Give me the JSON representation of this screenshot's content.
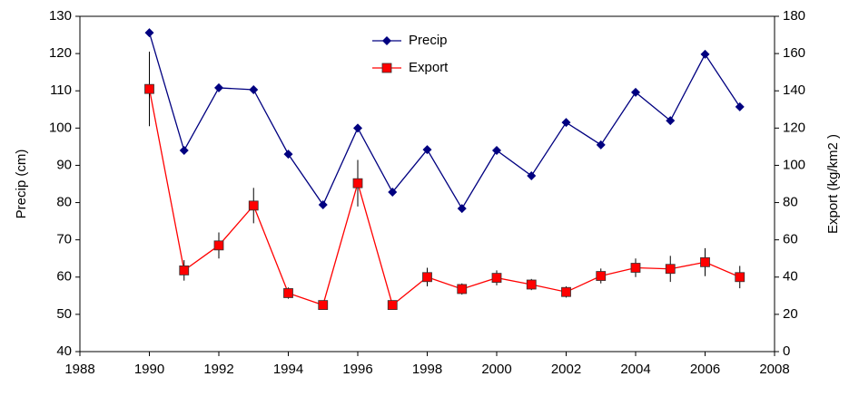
{
  "chart_data": {
    "type": "line",
    "x": [
      1990,
      1991,
      1992,
      1993,
      1994,
      1995,
      1996,
      1997,
      1998,
      1999,
      2000,
      2001,
      2002,
      2003,
      2004,
      2005,
      2006,
      2007
    ],
    "series": [
      {
        "name": "Precip",
        "color": "#000080",
        "marker": "diamond",
        "values": [
          125.6,
          94,
          110.8,
          110.3,
          93,
          79.4,
          100,
          82.8,
          94.2,
          78.4,
          94,
          87.2,
          101.5,
          95.5,
          109.6,
          102,
          119.8,
          105.7
        ]
      },
      {
        "name": "Export",
        "color": "#ff0000",
        "marker": "square",
        "axis": "y2",
        "values": [
          141,
          43.6,
          57,
          78.4,
          31.4,
          25,
          90.4,
          25,
          40,
          33.6,
          39.6,
          36,
          32,
          40.6,
          45,
          44.4,
          48,
          40
        ],
        "errors": [
          20,
          5.5,
          7,
          9.5,
          3,
          1.5,
          12.5,
          2,
          5,
          3,
          4,
          3,
          3,
          4,
          5,
          7,
          7.5,
          6
        ]
      }
    ],
    "xlim": [
      1988,
      2008
    ],
    "xticks": [
      1988,
      1990,
      1992,
      1994,
      1996,
      1998,
      2000,
      2002,
      2004,
      2006,
      2008
    ],
    "ylim": [
      40,
      130
    ],
    "yticks": [
      40,
      50,
      60,
      70,
      80,
      90,
      100,
      110,
      120,
      130
    ],
    "y2lim": [
      0,
      180
    ],
    "y2ticks": [
      0,
      20,
      40,
      60,
      80,
      100,
      120,
      140,
      160,
      180
    ],
    "ylabel": "Precip (cm)",
    "y2label": "Export (kg/km2 )",
    "grid": false,
    "legend": "top-center"
  }
}
